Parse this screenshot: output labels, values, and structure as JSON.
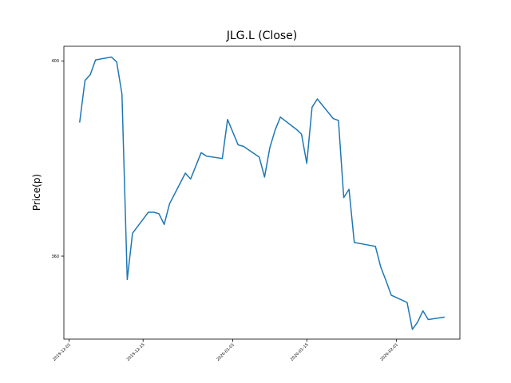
{
  "chart_data": {
    "type": "line",
    "title": "JLG.L (Close)",
    "xlabel": "",
    "ylabel": "Price(p)",
    "x_ticks": [
      "2019-12-01",
      "2019-12-15",
      "2020-01-01",
      "2020-01-15",
      "2020-02-01"
    ],
    "y_ticks": [
      360,
      400
    ],
    "xlim": [
      "2019-11-30",
      "2020-02-13"
    ],
    "ylim": [
      343,
      403
    ],
    "grid": false,
    "legend": "none",
    "colors": {
      "line": "#1f77b4"
    },
    "series": [
      {
        "x": [
          "2019-12-03",
          "2019-12-04",
          "2019-12-05",
          "2019-12-06",
          "2019-12-09",
          "2019-12-10",
          "2019-12-11",
          "2019-12-12",
          "2019-12-13",
          "2019-12-16",
          "2019-12-17",
          "2019-12-18",
          "2019-12-19",
          "2019-12-20",
          "2019-12-23",
          "2019-12-24",
          "2019-12-26",
          "2019-12-27",
          "2019-12-30",
          "2019-12-31",
          "2020-01-02",
          "2020-01-03",
          "2020-01-06",
          "2020-01-07",
          "2020-01-08",
          "2020-01-09",
          "2020-01-10",
          "2020-01-13",
          "2020-01-14",
          "2020-01-15",
          "2020-01-16",
          "2020-01-17",
          "2020-01-20",
          "2020-01-21",
          "2020-01-22",
          "2020-01-23",
          "2020-01-24",
          "2020-01-27",
          "2020-01-28",
          "2020-01-29",
          "2020-01-30",
          "2020-01-31",
          "2020-02-03",
          "2020-02-04",
          "2020-02-05",
          "2020-02-06",
          "2020-02-07",
          "2020-02-10"
        ],
        "values": [
          387.5,
          396.0,
          397.2,
          400.2,
          400.8,
          399.8,
          393.2,
          355.2,
          364.7,
          369.0,
          369.0,
          368.7,
          366.5,
          370.7,
          377.0,
          375.8,
          381.2,
          380.5,
          380.0,
          388.0,
          382.8,
          382.5,
          380.3,
          376.2,
          382.2,
          385.8,
          388.5,
          386.0,
          385.0,
          379.0,
          390.5,
          392.2,
          388.2,
          387.8,
          372.0,
          373.7,
          362.8,
          362.2,
          362.0,
          357.8,
          355.0,
          352.0,
          350.5,
          345.0,
          346.5,
          348.8,
          347.0,
          347.5
        ]
      }
    ]
  }
}
